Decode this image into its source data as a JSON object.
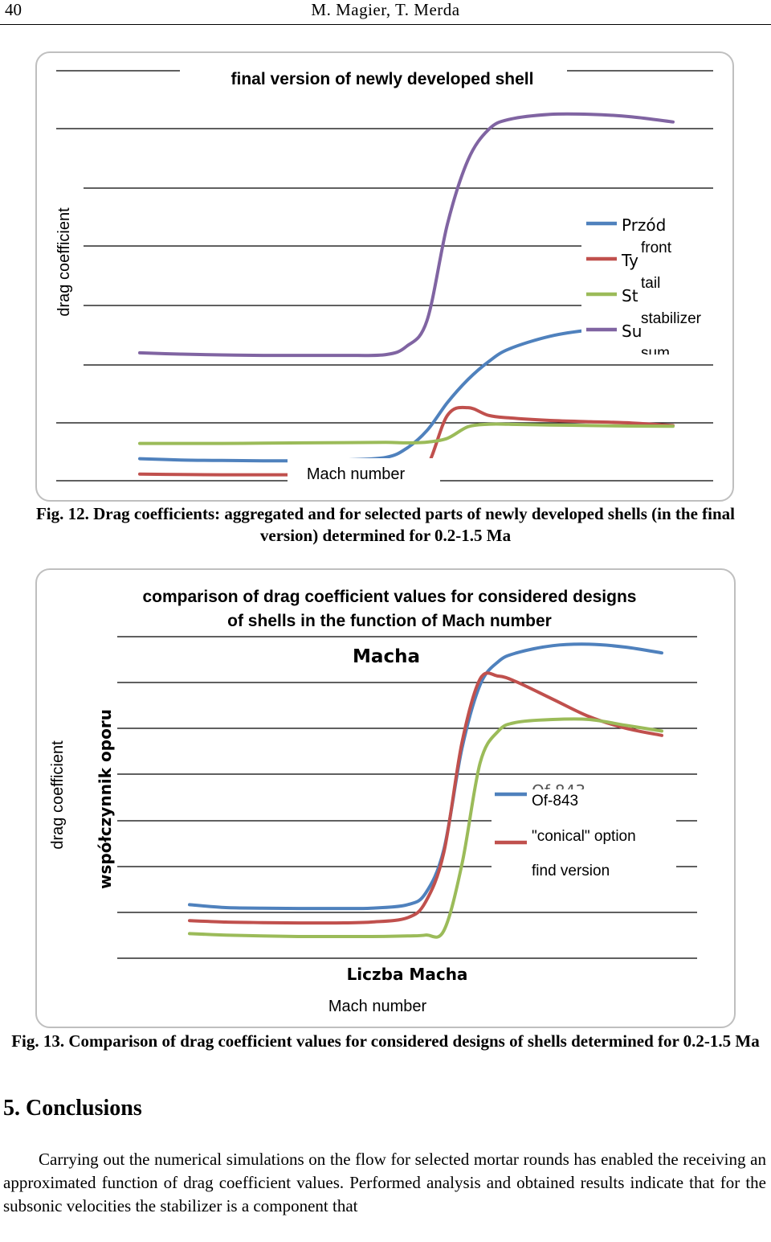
{
  "header": {
    "page_number": "40",
    "authors": "M. Magier, T. Merda"
  },
  "figure12": {
    "caption": "Fig. 12. Drag coefficients: aggregated and for selected parts of newly developed shells (in the final version) determined for 0.2-1.5 Ma",
    "chart_data": {
      "type": "line",
      "title": "final version of newly developed shell",
      "xlabel": "Mach number",
      "ylabel": "drag coefficient",
      "x": [
        0.2,
        0.3,
        0.4,
        0.5,
        0.6,
        0.7,
        0.8,
        0.85,
        0.9,
        0.95,
        1.0,
        1.05,
        1.1,
        1.2,
        1.3,
        1.4,
        1.5
      ],
      "series": [
        {
          "name": "front",
          "color": "#4f81bd",
          "values": [
            0.08,
            0.075,
            0.073,
            0.072,
            0.072,
            0.075,
            0.085,
            0.12,
            0.19,
            0.3,
            0.39,
            0.46,
            0.51,
            0.56,
            0.585,
            0.595,
            0.595
          ]
        },
        {
          "name": "tail",
          "color": "#c0504d",
          "values": [
            0.02,
            0.018,
            0.017,
            0.017,
            0.017,
            0.016,
            0.016,
            0.02,
            0.05,
            0.25,
            0.28,
            0.25,
            0.24,
            0.23,
            0.225,
            0.22,
            0.21
          ]
        },
        {
          "name": "stabilizer",
          "color": "#9bbb59",
          "values": [
            0.14,
            0.14,
            0.14,
            0.141,
            0.142,
            0.143,
            0.144,
            0.142,
            0.145,
            0.16,
            0.205,
            0.215,
            0.215,
            0.212,
            0.21,
            0.208,
            0.207
          ]
        },
        {
          "name": "sum",
          "color": "#8064a2",
          "values": [
            0.495,
            0.49,
            0.487,
            0.485,
            0.485,
            0.485,
            0.488,
            0.52,
            0.62,
            1.0,
            1.25,
            1.37,
            1.41,
            1.43,
            1.43,
            1.42,
            1.4
          ]
        }
      ],
      "legend_original": [
        "Przód",
        "Ty",
        "St",
        "Su"
      ],
      "legend_overlay": [
        "front",
        "tail",
        "stabilizer",
        "sum"
      ]
    }
  },
  "figure13": {
    "caption": "Fig. 13. Comparison of drag coefficient values for considered designs of shells determined for 0.2-1.5 Ma",
    "chart_data": {
      "type": "line",
      "title": "comparison of drag coefficient values for considered designs of shells in the function of Mach number",
      "title_lines": [
        "comparison of drag coefficient values for considered designs",
        "of shells in the function of Mach number"
      ],
      "title_original_fragment": "Macha",
      "xlabel": "Mach number",
      "xlabel_original": "Liczba Macha",
      "ylabel": "drag coefficient",
      "ylabel_original": "współczynnik oporu",
      "x": [
        0.2,
        0.3,
        0.4,
        0.5,
        0.6,
        0.7,
        0.8,
        0.85,
        0.9,
        0.95,
        1.0,
        1.05,
        1.1,
        1.2,
        1.3,
        1.4,
        1.5
      ],
      "series": [
        {
          "name": "Of-843",
          "color": "#4f81bd",
          "values": [
            0.56,
            0.55,
            0.548,
            0.547,
            0.547,
            0.548,
            0.56,
            0.6,
            0.75,
            1.1,
            1.32,
            1.4,
            1.43,
            1.455,
            1.46,
            1.45,
            1.43
          ]
        },
        {
          "name": "\"conical\" option",
          "color": "#c0504d",
          "values": [
            0.505,
            0.5,
            0.498,
            0.497,
            0.497,
            0.5,
            0.515,
            0.57,
            0.74,
            1.12,
            1.34,
            1.35,
            1.33,
            1.27,
            1.21,
            1.17,
            1.145
          ]
        },
        {
          "name": "find version",
          "color": "#9bbb59",
          "values": [
            0.46,
            0.455,
            0.452,
            0.45,
            0.45,
            0.45,
            0.452,
            0.455,
            0.47,
            0.7,
            1.05,
            1.16,
            1.19,
            1.2,
            1.2,
            1.18,
            1.16
          ]
        }
      ],
      "legend_original_fragment": "Of-843"
    }
  },
  "section": {
    "title": "5. Conclusions"
  },
  "body_text": "Carrying out the numerical simulations on the flow for selected mortar rounds has enabled the receiving an approximated function of drag coefficient values.  Performed analysis and obtained results indicate that for the subsonic velocities the stabilizer is a component that"
}
